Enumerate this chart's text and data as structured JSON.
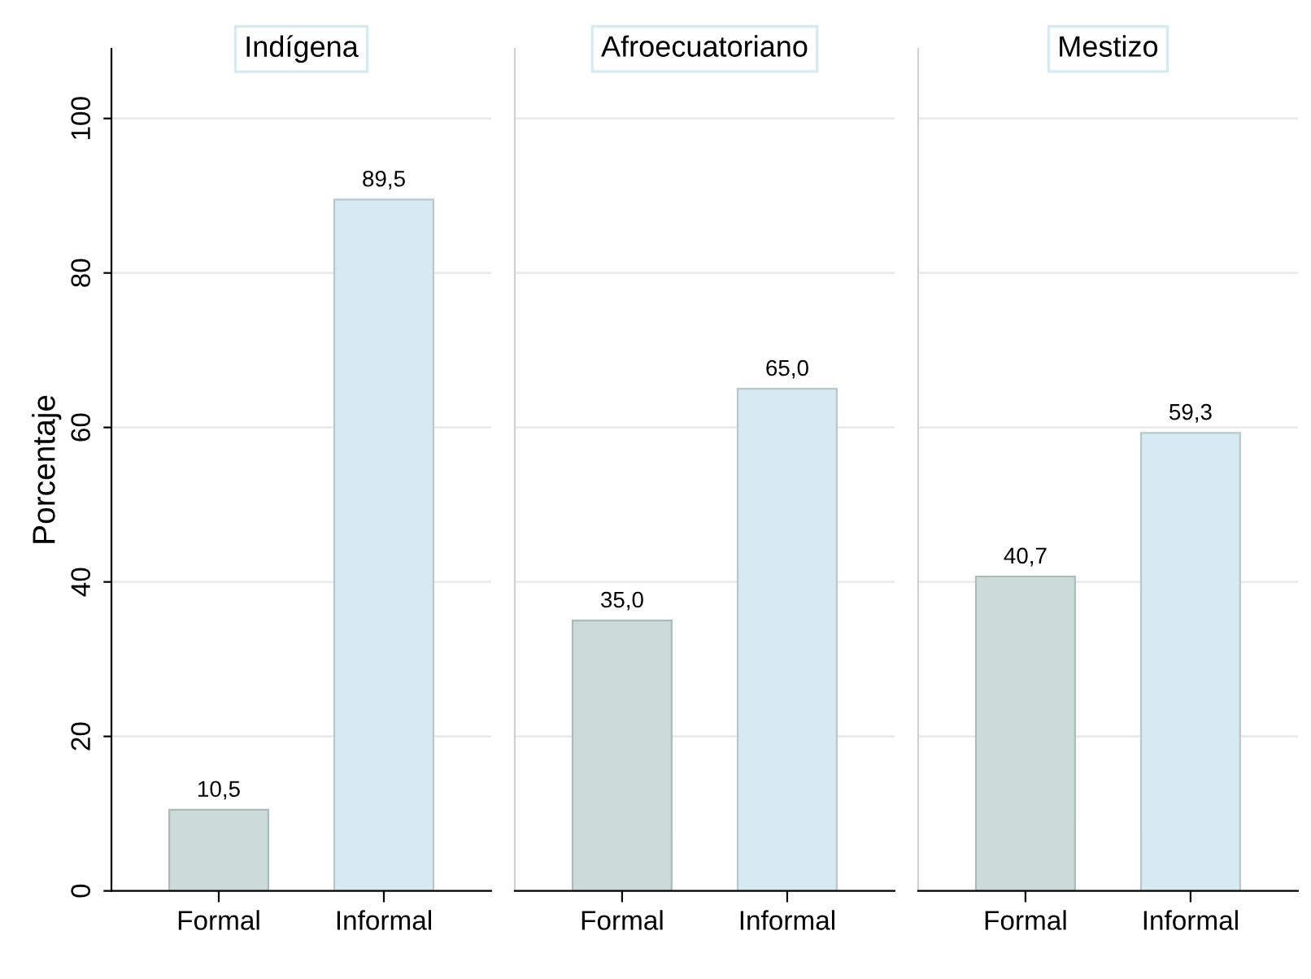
{
  "chart_data": [
    {
      "type": "bar",
      "title": "Indígena",
      "ylabel": "Porcentaje",
      "categories": [
        "Formal",
        "Informal"
      ],
      "values": [
        10.5,
        89.5
      ],
      "value_labels": [
        "10,5",
        "89,5"
      ],
      "colors": [
        "#cbdcd8",
        "#d6eaf1"
      ],
      "ylim": [
        0,
        109
      ],
      "yticks": [
        0,
        20,
        40,
        60,
        80,
        100
      ],
      "grid": "y"
    },
    {
      "type": "bar",
      "title": "Afroecuatoriano",
      "categories": [
        "Formal",
        "Informal"
      ],
      "values": [
        35.0,
        65.0
      ],
      "value_labels": [
        "35,0",
        "65,0"
      ],
      "colors": [
        "#cbdcd8",
        "#d6eaf1"
      ],
      "ylim": [
        0,
        109
      ],
      "yticks": [
        0,
        20,
        40,
        60,
        80,
        100
      ],
      "grid": "y",
      "tick_labels": "x"
    },
    {
      "type": "bar",
      "title": "Mestizo",
      "categories": [
        "Formal",
        "Informal"
      ],
      "values": [
        40.7,
        59.3
      ],
      "value_labels": [
        "40,7",
        "59,3"
      ],
      "colors": [
        "#cbdcd8",
        "#d6eaf1"
      ],
      "ylim": [
        0,
        109
      ],
      "yticks": [
        0,
        20,
        40,
        60,
        80,
        100
      ],
      "grid": "y",
      "tick_labels": "x"
    }
  ]
}
